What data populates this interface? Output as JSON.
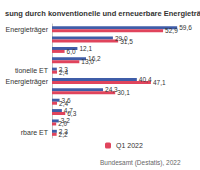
{
  "chart_data": {
    "type": "bar",
    "title": "sung durch konventionelle und erneuerbare Energieträger",
    "orientation": "horizontal",
    "categories": [
      "Energieträger",
      null,
      null,
      null,
      "tionelle ET",
      "Energieträger",
      null,
      null,
      null,
      null,
      "rbare ET"
    ],
    "series": [
      {
        "color": "#3f5da8",
        "values": [
          59.6,
          29.0,
          12.1,
          16.2,
          2.3,
          40.4,
          24.3,
          3.6,
          4.7,
          3.2,
          2.3
        ],
        "value_labels": [
          "59,6",
          "29,0",
          "12,1",
          "16,2",
          "2,3",
          "40,4",
          "24,3",
          "3,6",
          "4,7",
          "3,2",
          "2,3"
        ]
      },
      {
        "name": "Q1 2022",
        "color": "#e0445c",
        "values": [
          52.9,
          31.5,
          6.0,
          13.0,
          2.4,
          47.1,
          30.1,
          2.4,
          6.3,
          2.0,
          2.2
        ],
        "value_labels": [
          "52,9",
          "31,5",
          "6,0",
          "13,0",
          "2,4",
          "47,1",
          "30,1",
          "2,4",
          "6,3",
          "2,0",
          "2,2"
        ]
      }
    ],
    "xlim": [
      0,
      60
    ],
    "data_labels": true,
    "tick_labels": "y",
    "grid": false,
    "legend": "bottom",
    "annotations": [
      "Bundesamt (Destatis), 2022"
    ]
  }
}
